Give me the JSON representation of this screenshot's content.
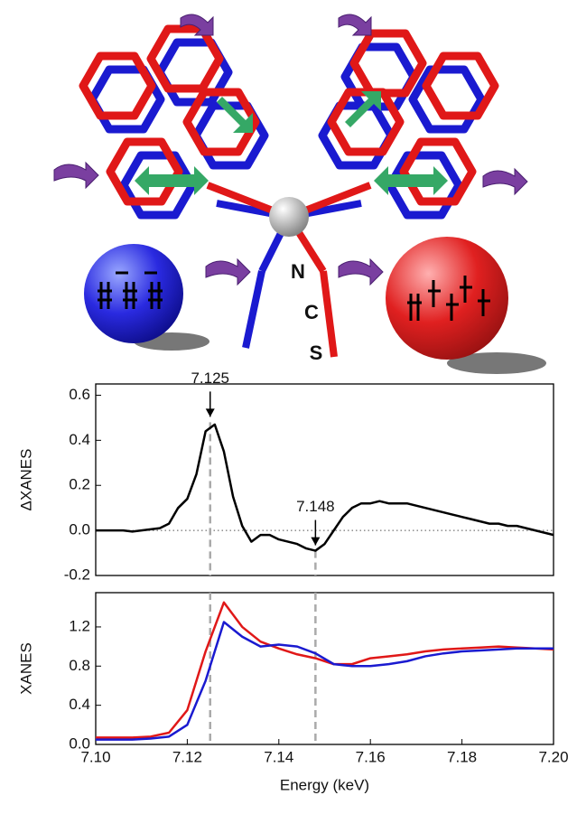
{
  "diagram": {
    "labels": [
      "N",
      "C",
      "S"
    ]
  },
  "chart_data": [
    {
      "type": "line",
      "y_label": "ΔXANES",
      "xlim": [
        7.1,
        7.2
      ],
      "ylim": [
        -0.2,
        0.65
      ],
      "yticks": [
        -0.2,
        {
          "value": 0,
          "label": "0.0"
        },
        0.2,
        0.4,
        0.6
      ],
      "zero_line": true,
      "markers": [
        {
          "x": 7.125,
          "y": 0.48
        },
        {
          "x": 7.148,
          "y": -0.09
        }
      ],
      "x": [
        7.1,
        7.102,
        7.104,
        7.106,
        7.108,
        7.11,
        7.112,
        7.114,
        7.116,
        7.118,
        7.12,
        7.122,
        7.124,
        7.126,
        7.128,
        7.13,
        7.132,
        7.134,
        7.136,
        7.138,
        7.14,
        7.142,
        7.144,
        7.146,
        7.148,
        7.15,
        7.152,
        7.154,
        7.156,
        7.158,
        7.16,
        7.162,
        7.164,
        7.166,
        7.168,
        7.17,
        7.172,
        7.174,
        7.176,
        7.178,
        7.18,
        7.182,
        7.184,
        7.186,
        7.188,
        7.19,
        7.192,
        7.194,
        7.196,
        7.198,
        7.2
      ],
      "series": [
        {
          "color": "#000000",
          "values": [
            0.0,
            0.0,
            0.0,
            0.0,
            -0.005,
            0.0,
            0.005,
            0.01,
            0.03,
            0.1,
            0.14,
            0.25,
            0.44,
            0.47,
            0.35,
            0.15,
            0.02,
            -0.05,
            -0.02,
            -0.02,
            -0.04,
            -0.05,
            -0.06,
            -0.08,
            -0.09,
            -0.06,
            0.0,
            0.06,
            0.1,
            0.12,
            0.12,
            0.13,
            0.12,
            0.12,
            0.12,
            0.11,
            0.1,
            0.09,
            0.08,
            0.07,
            0.06,
            0.05,
            0.04,
            0.03,
            0.03,
            0.02,
            0.02,
            0.01,
            0.0,
            -0.01,
            -0.02
          ]
        }
      ]
    },
    {
      "type": "line",
      "y_label": "XANES",
      "x_label": "Energy (keV)",
      "xlim": [
        7.1,
        7.2
      ],
      "ylim": [
        0,
        1.55
      ],
      "xticks": [
        {
          "value": 7.1,
          "label": "7.10"
        },
        7.12,
        7.14,
        7.16,
        7.18,
        {
          "value": 7.2,
          "label": "7.20"
        }
      ],
      "yticks": [
        {
          "value": 0,
          "label": "0.0"
        },
        0.4,
        0.8,
        1.2
      ],
      "x": [
        7.1,
        7.104,
        7.108,
        7.112,
        7.116,
        7.12,
        7.124,
        7.128,
        7.132,
        7.136,
        7.14,
        7.144,
        7.148,
        7.152,
        7.156,
        7.16,
        7.164,
        7.168,
        7.172,
        7.176,
        7.18,
        7.184,
        7.188,
        7.192,
        7.196,
        7.2
      ],
      "series": [
        {
          "color": "#e01818",
          "values": [
            0.07,
            0.07,
            0.07,
            0.08,
            0.12,
            0.35,
            0.95,
            1.45,
            1.2,
            1.05,
            0.98,
            0.92,
            0.88,
            0.82,
            0.82,
            0.88,
            0.9,
            0.92,
            0.95,
            0.97,
            0.98,
            0.99,
            1.0,
            0.99,
            0.98,
            0.97
          ]
        },
        {
          "color": "#1a1ad0",
          "values": [
            0.05,
            0.05,
            0.05,
            0.06,
            0.08,
            0.2,
            0.65,
            1.25,
            1.1,
            1.0,
            1.02,
            1.0,
            0.93,
            0.82,
            0.8,
            0.8,
            0.82,
            0.85,
            0.9,
            0.93,
            0.95,
            0.96,
            0.97,
            0.98,
            0.98,
            0.98
          ]
        }
      ]
    }
  ]
}
